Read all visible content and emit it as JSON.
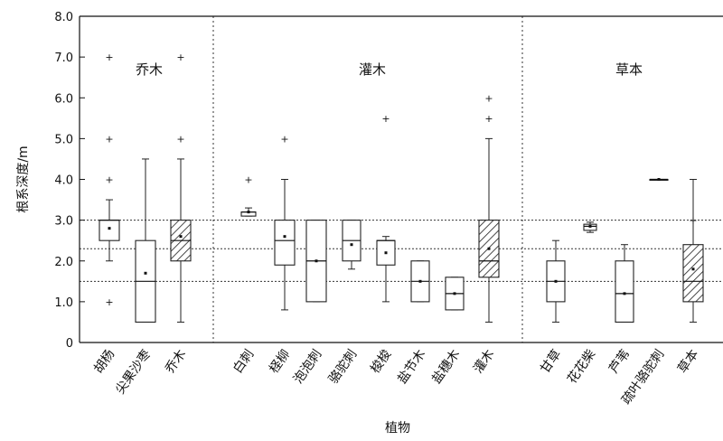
{
  "chart_data": {
    "type": "box",
    "ylabel": "根系深度/m",
    "xlabel": "植物",
    "ylim": [
      0,
      8
    ],
    "yticks": [
      0,
      1,
      2,
      3,
      4,
      5,
      6,
      7,
      8
    ],
    "ytick_labels": [
      "0",
      "1.0",
      "2.0",
      "3.0",
      "4.0",
      "5.0",
      "6.0",
      "7.0",
      "8.0"
    ],
    "reference_lines": [
      3.0,
      2.3,
      1.5
    ],
    "groups": [
      {
        "label": "乔木",
        "categories": [
          {
            "name": "胡杨",
            "min": 2.0,
            "q1": 2.5,
            "median": 3.0,
            "q3": 3.0,
            "max": 3.5,
            "mean": 2.8,
            "outliers": [
              4.0,
              5.0,
              7.0,
              1.0
            ],
            "pattern": "plain"
          },
          {
            "name": "尖果沙枣",
            "min": 0.5,
            "q1": 0.5,
            "median": 1.5,
            "q3": 2.5,
            "max": 4.5,
            "mean": 1.7,
            "outliers": [],
            "pattern": "plain"
          },
          {
            "name": "乔木",
            "min": 0.5,
            "q1": 2.0,
            "median": 2.5,
            "q3": 3.0,
            "max": 4.5,
            "mean": 2.6,
            "outliers": [
              5.0,
              7.0
            ],
            "pattern": "hatched"
          }
        ]
      },
      {
        "label": "灌木",
        "categories": [
          {
            "name": "白刺",
            "min": 3.1,
            "q1": 3.1,
            "median": 3.2,
            "q3": 3.2,
            "max": 3.3,
            "mean": 3.2,
            "outliers": [
              4.0
            ],
            "pattern": "plain"
          },
          {
            "name": "柽柳",
            "min": 0.8,
            "q1": 1.9,
            "median": 2.5,
            "q3": 3.0,
            "max": 4.0,
            "mean": 2.6,
            "outliers": [
              5.0
            ],
            "pattern": "plain"
          },
          {
            "name": "泡泡刺",
            "min": 1.0,
            "q1": 1.0,
            "median": 2.0,
            "q3": 3.0,
            "max": 3.0,
            "mean": 2.0,
            "outliers": [],
            "pattern": "plain"
          },
          {
            "name": "骆驼刺",
            "min": 1.8,
            "q1": 2.0,
            "median": 2.5,
            "q3": 3.0,
            "max": 3.0,
            "mean": 2.4,
            "outliers": [],
            "pattern": "plain"
          },
          {
            "name": "梭梭",
            "min": 1.0,
            "q1": 1.9,
            "median": 2.5,
            "q3": 2.5,
            "max": 2.6,
            "mean": 2.2,
            "outliers": [
              5.5
            ],
            "pattern": "plain"
          },
          {
            "name": "盐节木",
            "min": 1.0,
            "q1": 1.0,
            "median": 1.5,
            "q3": 2.0,
            "max": 2.0,
            "mean": 1.5,
            "outliers": [],
            "pattern": "plain"
          },
          {
            "name": "盐穗木",
            "min": 0.8,
            "q1": 0.8,
            "median": 1.2,
            "q3": 1.6,
            "max": 1.6,
            "mean": 1.2,
            "outliers": [],
            "pattern": "plain"
          },
          {
            "name": "灌木",
            "min": 0.5,
            "q1": 1.6,
            "median": 2.0,
            "q3": 3.0,
            "max": 5.0,
            "mean": 2.3,
            "outliers": [
              5.5,
              6.0
            ],
            "pattern": "hatched"
          }
        ]
      },
      {
        "label": "草本",
        "categories": [
          {
            "name": "甘草",
            "min": 0.5,
            "q1": 1.0,
            "median": 1.5,
            "q3": 2.0,
            "max": 2.5,
            "mean": 1.5,
            "outliers": [],
            "pattern": "plain"
          },
          {
            "name": "花花柴",
            "min": 2.7,
            "q1": 2.75,
            "median": 2.85,
            "q3": 2.9,
            "max": 2.95,
            "mean": 2.85,
            "outliers": [],
            "pattern": "plain"
          },
          {
            "name": "芦苇",
            "min": 0.5,
            "q1": 0.5,
            "median": 1.2,
            "q3": 2.0,
            "max": 2.4,
            "mean": 1.2,
            "outliers": [],
            "pattern": "plain"
          },
          {
            "name": "疏叶骆驼刺",
            "min": 4.0,
            "q1": 4.0,
            "median": 4.0,
            "q3": 4.0,
            "max": 4.0,
            "mean": 4.0,
            "outliers": [],
            "pattern": "plain"
          },
          {
            "name": "草本",
            "min": 0.5,
            "q1": 1.0,
            "median": 1.5,
            "q3": 2.4,
            "max": 4.0,
            "mean": 1.8,
            "outliers": [
              3.0
            ],
            "pattern": "hatched"
          }
        ]
      }
    ]
  }
}
